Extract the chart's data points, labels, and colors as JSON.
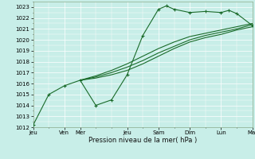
{
  "title": "",
  "xlabel": "Pression niveau de la mer( hPa )",
  "ylabel": "",
  "bg_color": "#c8eee8",
  "grid_color": "#ffffff",
  "line_color": "#1a6b2a",
  "ylim": [
    1012,
    1023.5
  ],
  "yticks": [
    1012,
    1013,
    1014,
    1015,
    1016,
    1017,
    1018,
    1019,
    1020,
    1021,
    1022,
    1023
  ],
  "x_day_labels": [
    "Jeu\nVen",
    "Mar",
    "Jeu",
    "Sam",
    "Dim",
    "Lun",
    "Mar"
  ],
  "line1_x": [
    0.0,
    0.5,
    1.0,
    1.5,
    2.0,
    2.5,
    3.0,
    3.5,
    4.0,
    4.25,
    4.5,
    5.0,
    5.5,
    6.0,
    6.25,
    6.5,
    7.0
  ],
  "line1_y": [
    1012.2,
    1015.0,
    1015.8,
    1016.3,
    1014.0,
    1014.5,
    1016.8,
    1020.4,
    1022.8,
    1023.1,
    1022.8,
    1022.5,
    1022.6,
    1022.5,
    1022.7,
    1022.4,
    1021.3
  ],
  "line2_x": [
    1.5,
    2.0,
    2.5,
    3.0,
    3.5,
    4.0,
    4.5,
    5.0,
    5.5,
    6.0,
    6.5,
    7.0
  ],
  "line2_y": [
    1016.3,
    1016.5,
    1016.8,
    1017.2,
    1017.8,
    1018.5,
    1019.2,
    1019.8,
    1020.2,
    1020.5,
    1020.9,
    1021.2
  ],
  "line3_x": [
    1.5,
    2.0,
    2.5,
    3.0,
    3.5,
    4.0,
    4.5,
    5.0,
    5.5,
    6.0,
    6.5,
    7.0
  ],
  "line3_y": [
    1016.3,
    1016.6,
    1017.0,
    1017.5,
    1018.1,
    1018.8,
    1019.4,
    1020.0,
    1020.4,
    1020.7,
    1021.0,
    1021.4
  ],
  "line4_x": [
    1.5,
    2.0,
    2.5,
    3.0,
    3.5,
    4.0,
    4.5,
    5.0,
    5.5,
    6.0,
    6.5,
    7.0
  ],
  "line4_y": [
    1016.3,
    1016.7,
    1017.2,
    1017.8,
    1018.5,
    1019.2,
    1019.8,
    1020.3,
    1020.6,
    1020.9,
    1021.2,
    1021.5
  ],
  "xlim": [
    0.0,
    7.0
  ],
  "xtick_positions": [
    0.0,
    1.0,
    1.5,
    3.0,
    4.0,
    5.0,
    6.0,
    7.0
  ],
  "xtick_labels": [
    "Jeu",
    "Ven",
    "Mer",
    "Jeu",
    "Sam",
    "Dim",
    "Lun",
    "Mar"
  ]
}
